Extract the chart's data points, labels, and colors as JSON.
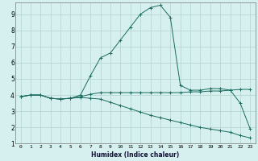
{
  "xlabel": "Humidex (Indice chaleur)",
  "bg_color": "#d6f0ef",
  "grid_color": "#b8d8d4",
  "line_color": "#1a6b5e",
  "xlim": [
    -0.5,
    23.5
  ],
  "ylim": [
    1,
    9.7
  ],
  "yticks": [
    1,
    2,
    3,
    4,
    5,
    6,
    7,
    8,
    9
  ],
  "xticks": [
    0,
    1,
    2,
    3,
    4,
    5,
    6,
    7,
    8,
    9,
    10,
    11,
    12,
    13,
    14,
    15,
    16,
    17,
    18,
    19,
    20,
    21,
    22,
    23
  ],
  "series1_x": [
    0,
    1,
    2,
    3,
    4,
    5,
    6,
    7,
    8,
    9,
    10,
    11,
    12,
    13,
    14,
    15,
    16,
    17,
    18,
    19,
    20,
    21,
    22,
    23
  ],
  "series1_y": [
    3.9,
    4.0,
    4.0,
    3.8,
    3.75,
    3.8,
    3.9,
    4.05,
    4.15,
    4.15,
    4.15,
    4.15,
    4.15,
    4.15,
    4.15,
    4.15,
    4.15,
    4.2,
    4.2,
    4.25,
    4.25,
    4.3,
    4.35,
    4.35
  ],
  "series2_x": [
    0,
    1,
    2,
    3,
    4,
    5,
    6,
    7,
    8,
    9,
    10,
    11,
    12,
    13,
    14,
    15,
    16,
    17,
    18,
    19,
    20,
    21,
    22,
    23
  ],
  "series2_y": [
    3.9,
    4.0,
    4.0,
    3.8,
    3.75,
    3.8,
    4.0,
    5.2,
    6.3,
    6.6,
    7.4,
    8.2,
    9.0,
    9.4,
    9.55,
    8.8,
    4.6,
    4.3,
    4.3,
    4.4,
    4.4,
    4.3,
    3.5,
    1.9
  ],
  "series3_x": [
    0,
    1,
    2,
    3,
    4,
    5,
    6,
    7,
    8,
    9,
    10,
    11,
    12,
    13,
    14,
    15,
    16,
    17,
    18,
    19,
    20,
    21,
    22,
    23
  ],
  "series3_y": [
    3.9,
    4.0,
    4.0,
    3.8,
    3.75,
    3.8,
    3.85,
    3.8,
    3.75,
    3.55,
    3.35,
    3.15,
    2.95,
    2.75,
    2.6,
    2.45,
    2.3,
    2.15,
    2.0,
    1.9,
    1.8,
    1.7,
    1.5,
    1.35
  ]
}
